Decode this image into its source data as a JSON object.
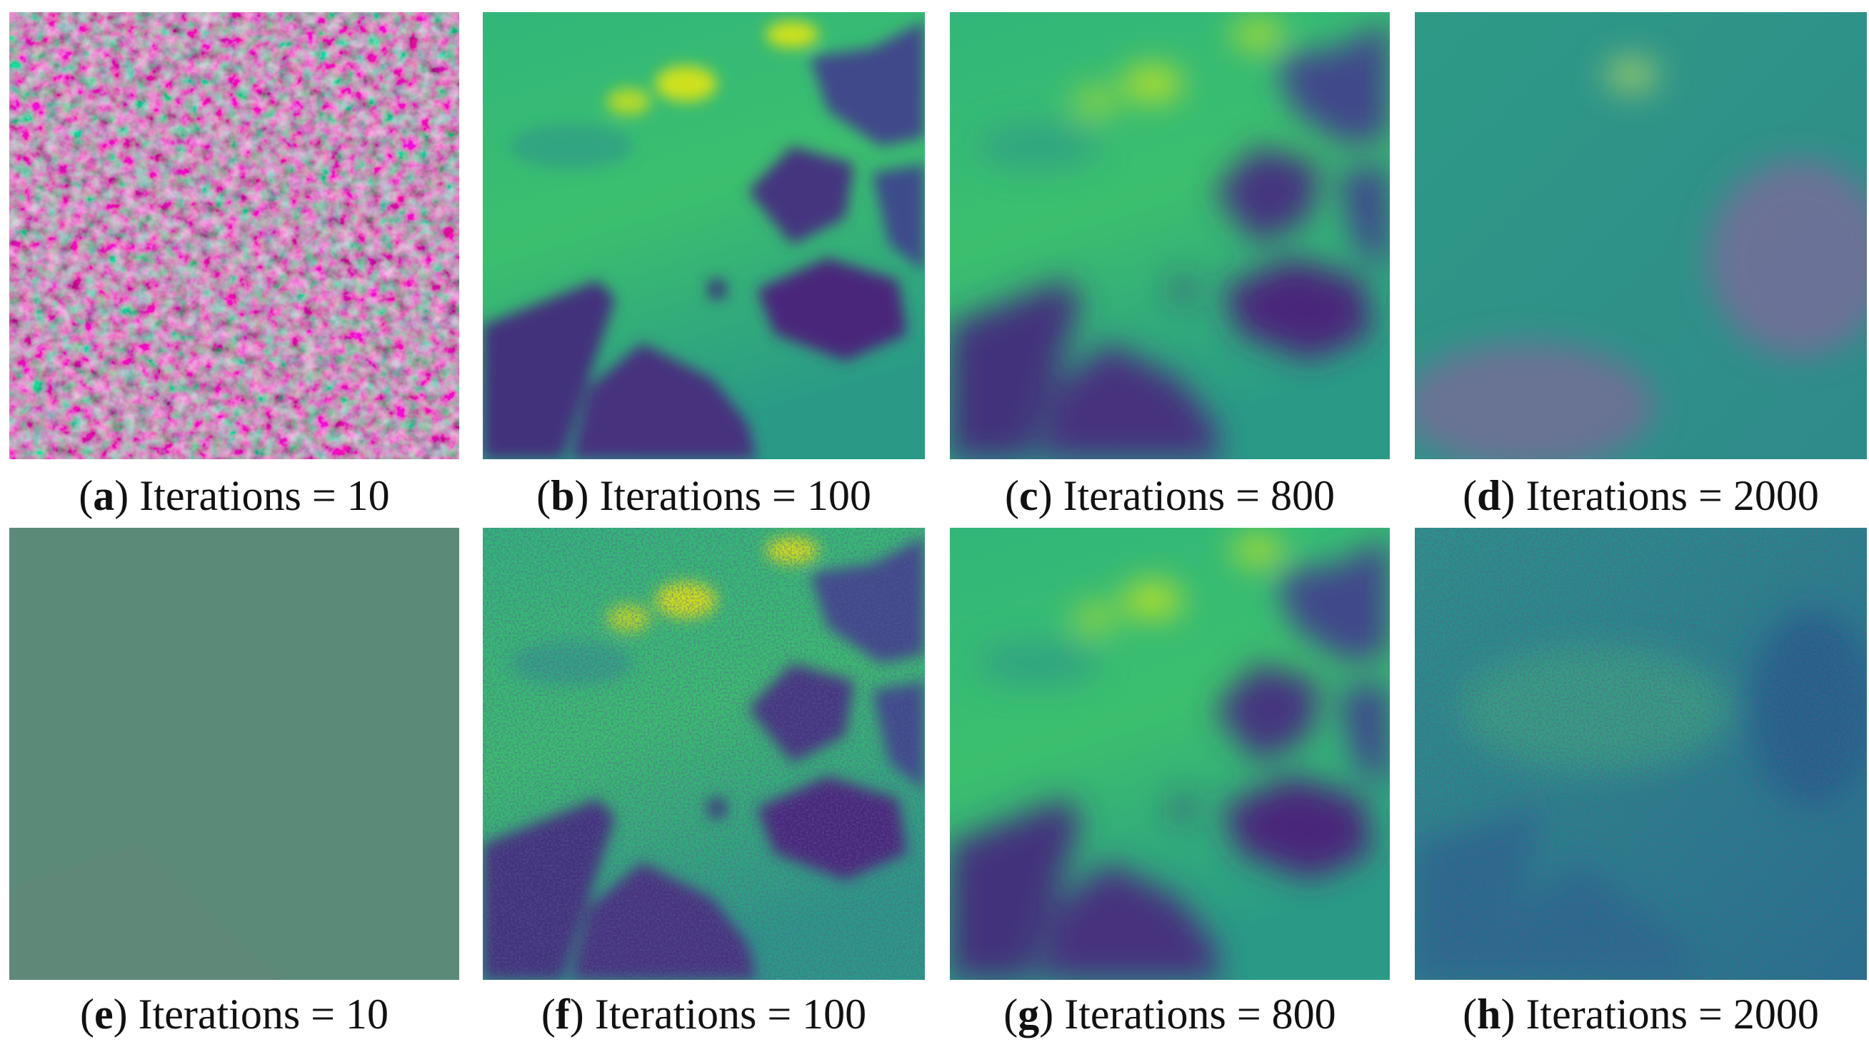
{
  "panels": [
    {
      "open": "(",
      "letter": "a",
      "rest": ") Iterations = 10"
    },
    {
      "open": "(",
      "letter": "b",
      "rest": ") Iterations = 100"
    },
    {
      "open": "(",
      "letter": "c",
      "rest": ") Iterations = 800"
    },
    {
      "open": "(",
      "letter": "d",
      "rest": ") Iterations = 2000"
    },
    {
      "open": "(",
      "letter": "e",
      "rest": ") Iterations = 10"
    },
    {
      "open": "(",
      "letter": "f",
      "rest": ") Iterations = 100"
    },
    {
      "open": "(",
      "letter": "g",
      "rest": ") Iterations = 800"
    },
    {
      "open": "(",
      "letter": "h",
      "rest": ") Iterations = 2000"
    }
  ]
}
